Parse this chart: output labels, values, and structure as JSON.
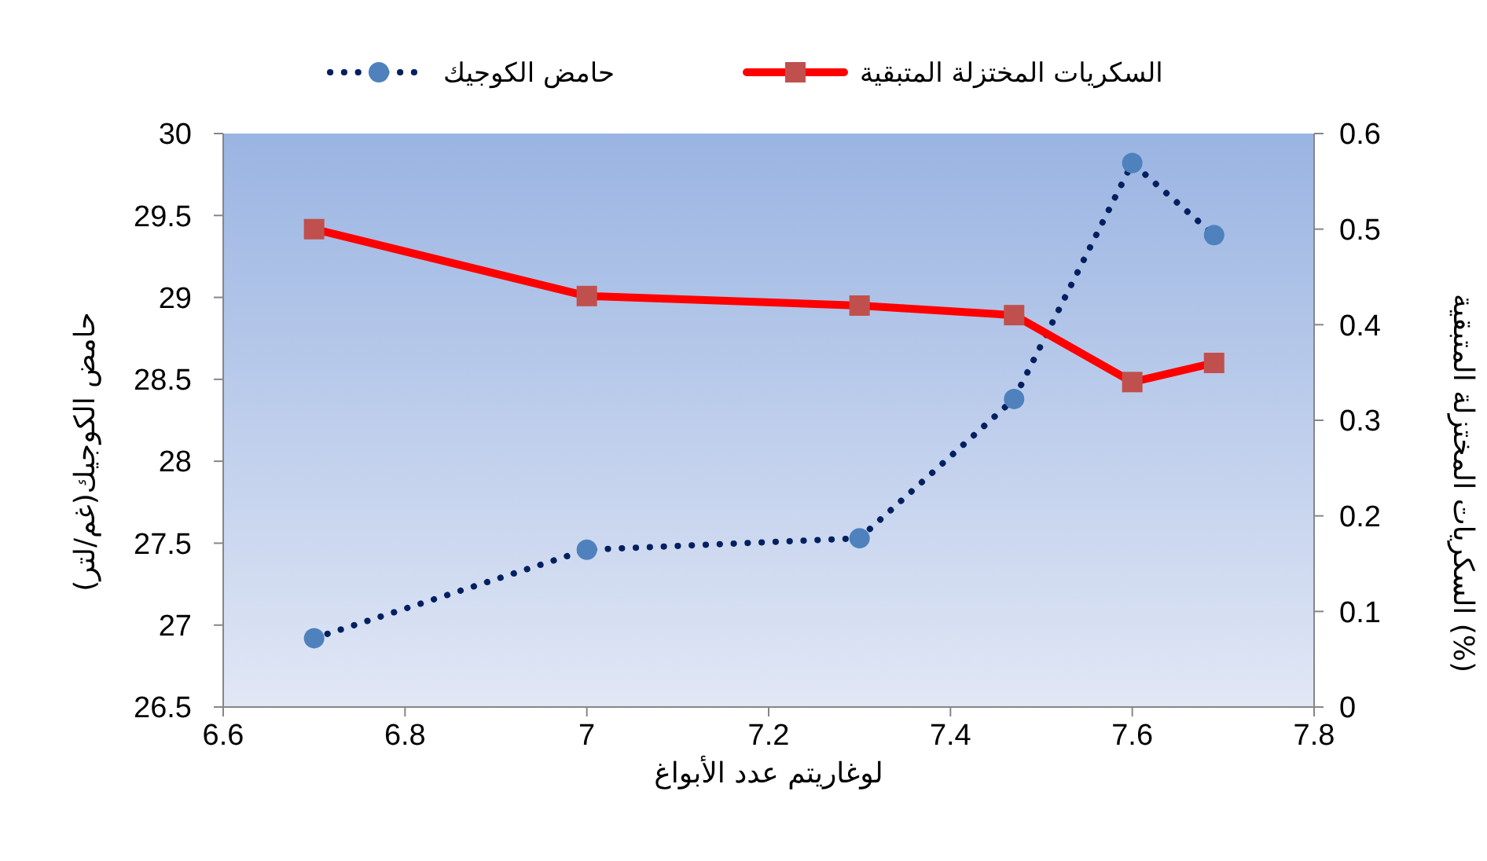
{
  "chart_data": {
    "type": "line",
    "xlabel": "لوغاريتم عدد الأبواغ",
    "ylabel": "حامض الكوجيك(غم/لتر)",
    "y2label": "السكريات المختزلة المتبقية (%)",
    "x": [
      6.7,
      7.0,
      7.3,
      7.47,
      7.6,
      7.69
    ],
    "series": [
      {
        "name": "حامض الكوجيك",
        "color": "#002060",
        "marker": "circle",
        "line_style": "dotted",
        "values": [
          26.92,
          27.46,
          27.53,
          28.38,
          29.82,
          29.38
        ]
      },
      {
        "name": "السكريات المختزلة المتبقية",
        "color": "#ff0000",
        "marker": "square",
        "line_style": "solid",
        "axis": "y2",
        "values": [
          0.5,
          0.43,
          0.42,
          0.41,
          0.34,
          0.36
        ]
      }
    ],
    "xlim": [
      6.6,
      7.8
    ],
    "xticks": [
      6.6,
      6.8,
      7,
      7.2,
      7.4,
      7.6,
      7.8
    ],
    "ylim": [
      26.5,
      30
    ],
    "yticks": [
      26.5,
      27,
      27.5,
      28,
      28.5,
      29,
      29.5,
      30
    ],
    "y2lim": [
      0,
      0.6
    ],
    "y2ticks": [
      0,
      0.1,
      0.2,
      0.3,
      0.4,
      0.5,
      0.6
    ],
    "grid": false,
    "legend": "top"
  }
}
